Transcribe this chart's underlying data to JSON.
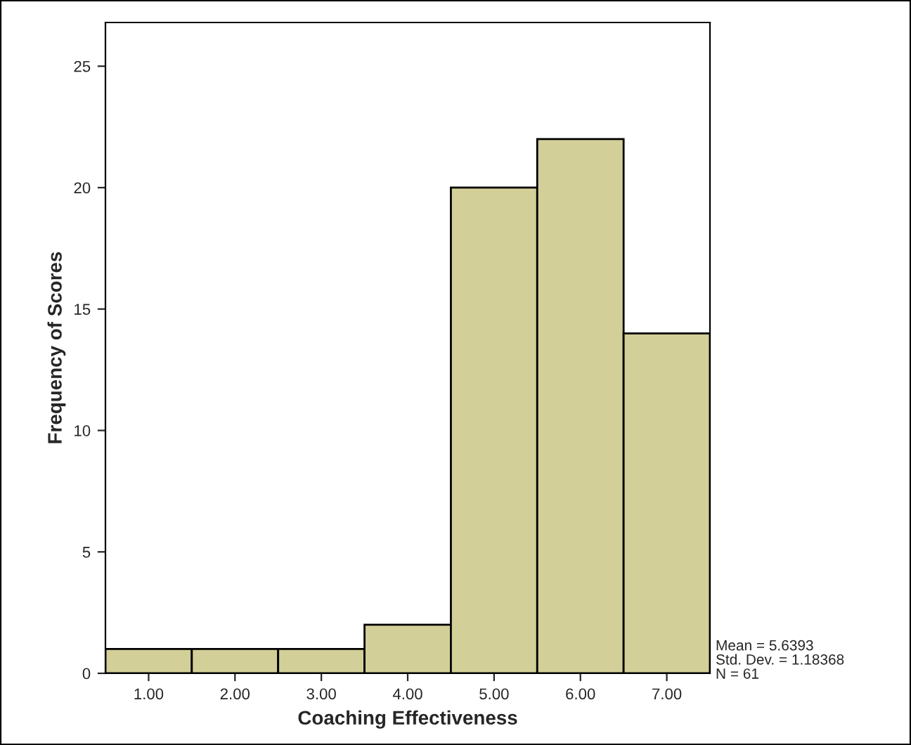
{
  "chart_data": {
    "type": "histogram",
    "xlabel": "Coaching Effectiveness",
    "ylabel": "Frequency of Scores",
    "bins": [
      0.5,
      1.5,
      2.5,
      3.5,
      4.5,
      5.5,
      6.5,
      7.5
    ],
    "values": [
      1,
      1,
      1,
      2,
      20,
      22,
      14
    ],
    "color": "#d3cf98",
    "xlim": [
      0.5,
      7.5
    ],
    "xticks": [
      {
        "value": 1,
        "label": "1.00"
      },
      {
        "value": 2,
        "label": "2.00"
      },
      {
        "value": 3,
        "label": "3.00"
      },
      {
        "value": 4,
        "label": "4.00"
      },
      {
        "value": 5,
        "label": "5.00"
      },
      {
        "value": 6,
        "label": "6.00"
      },
      {
        "value": 7,
        "label": "7.00"
      }
    ],
    "ylim": [
      0,
      26.8
    ],
    "yticks": [
      0,
      5,
      10,
      15,
      20,
      25
    ],
    "annotations": [
      "Mean = 5.6393",
      "Std. Dev. = 1.18368",
      "N = 61"
    ]
  }
}
